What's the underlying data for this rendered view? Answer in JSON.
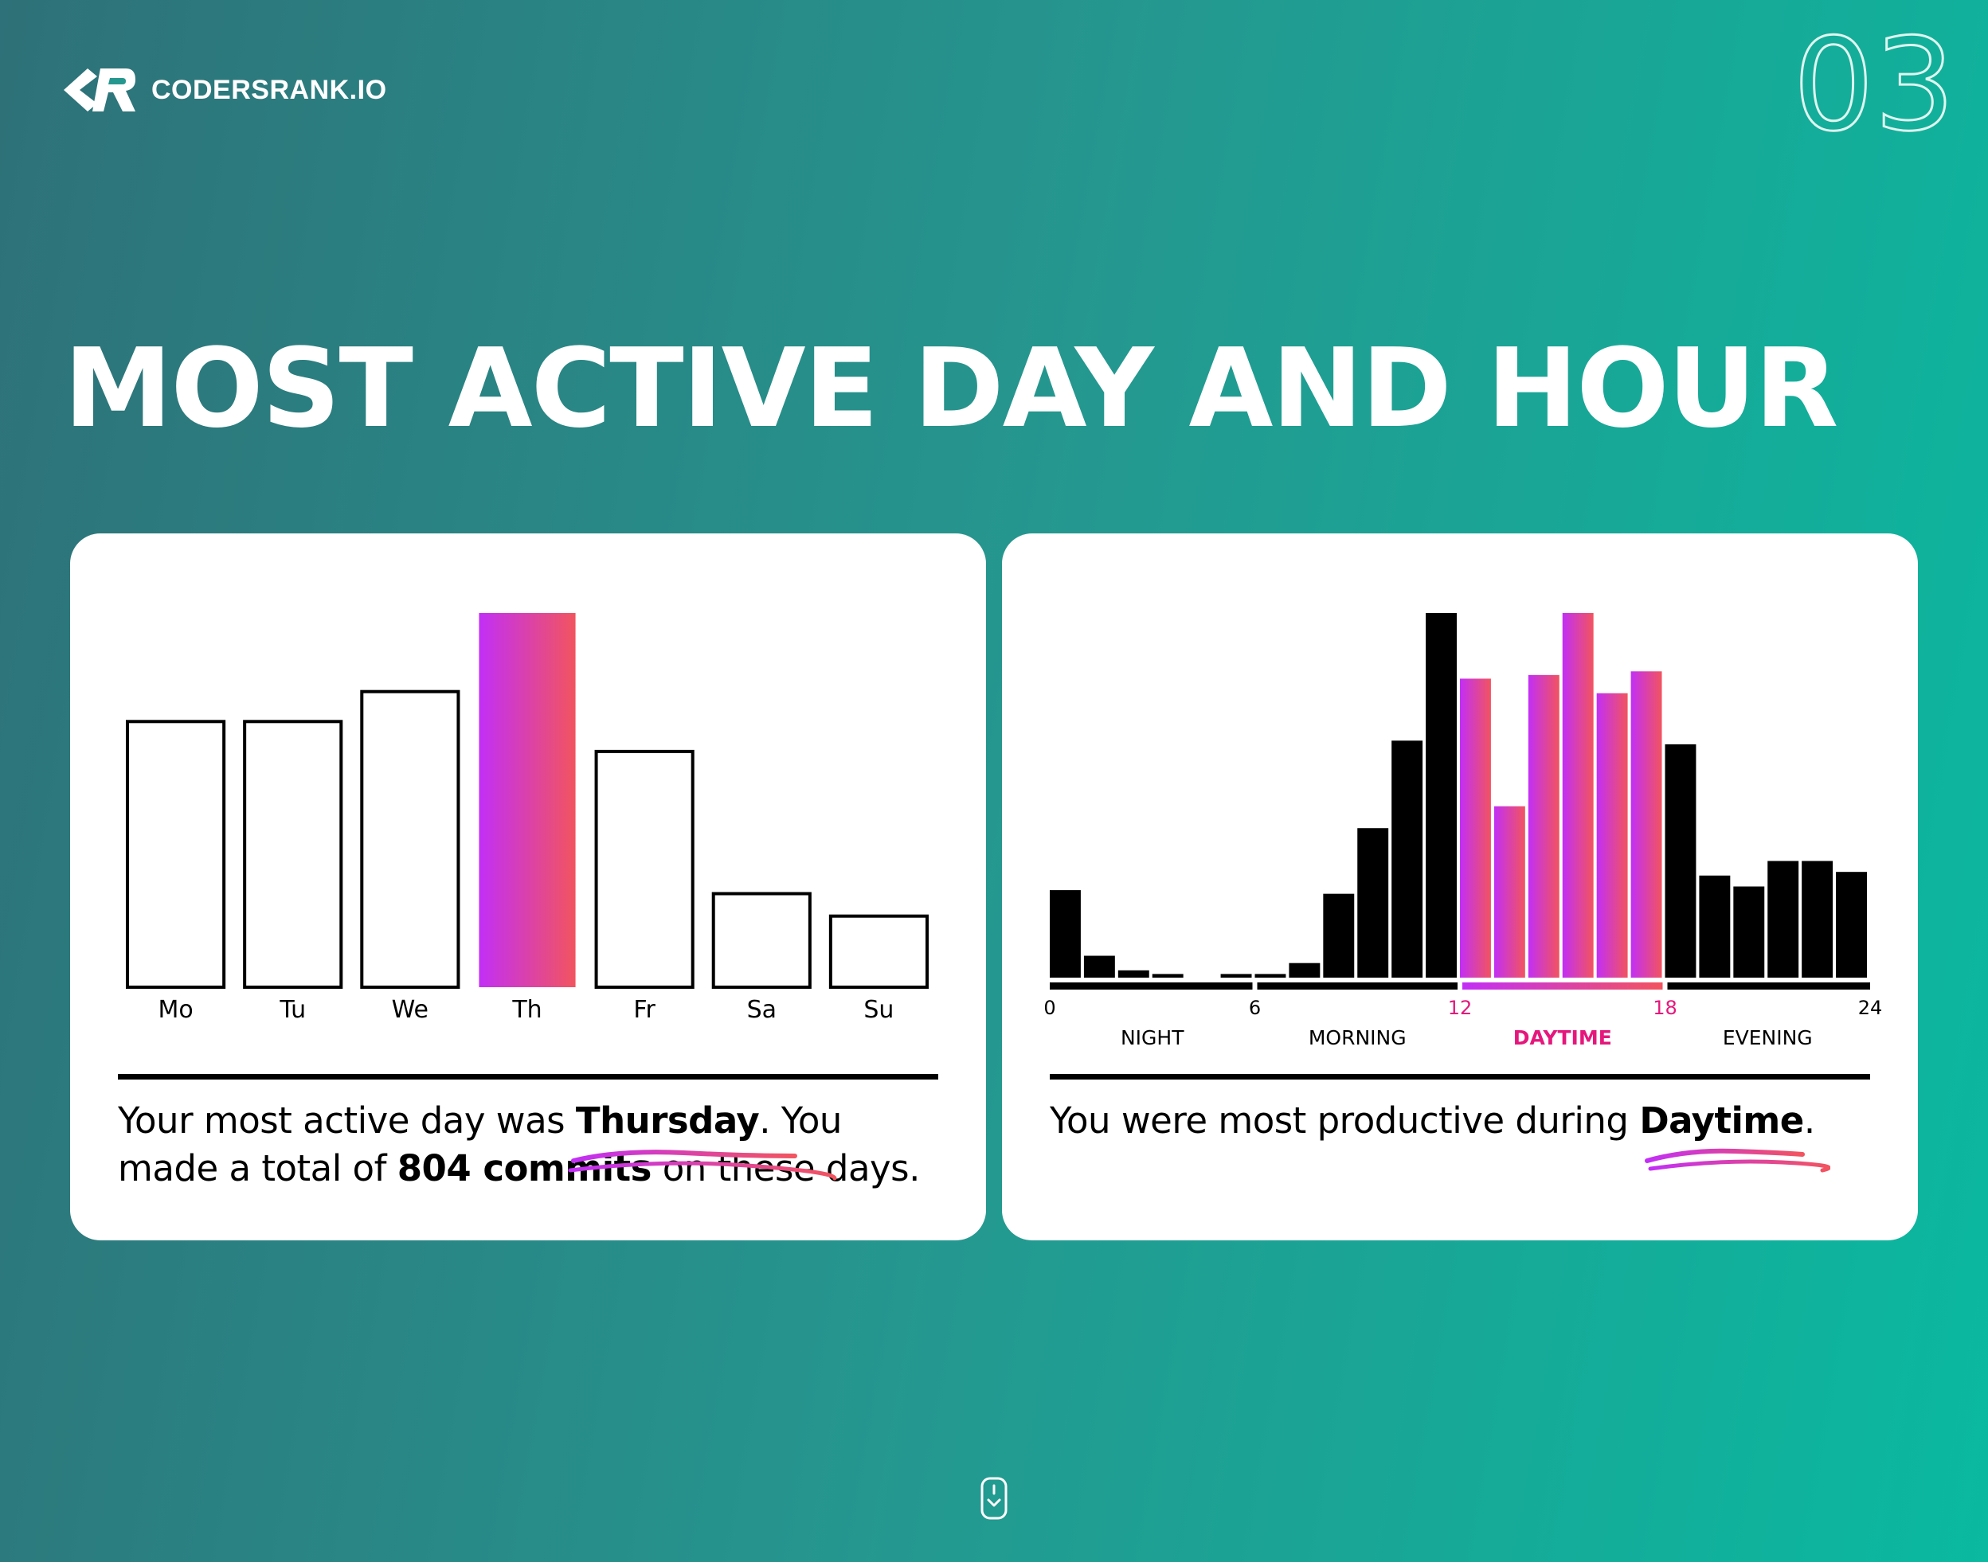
{
  "brand": {
    "name": "CODERSRANK.IO",
    "logo_icon": "codersrank-logo-icon"
  },
  "page_number": "03",
  "title": "MOST ACTIVE DAY AND HOUR",
  "colors": {
    "accent_start": "#c22ff6",
    "accent_end": "#f2545f",
    "highlight_text": "#e5177c",
    "bar": "#000000"
  },
  "day_card": {
    "caption_prefix": "Your most active day was ",
    "caption_day": "Thursday",
    "caption_mid": ". You made a total of ",
    "caption_commits": "804 commits",
    "caption_suffix": " on these days."
  },
  "hour_card": {
    "caption_prefix": "You were most productive during ",
    "caption_period": "Daytime",
    "caption_suffix": "."
  },
  "chart_data": [
    {
      "type": "bar",
      "categories": [
        "Mo",
        "Tu",
        "We",
        "Th",
        "Fr",
        "Sa",
        "Su"
      ],
      "values": [
        71,
        71,
        79,
        100,
        63,
        25,
        19
      ],
      "highlight": "Th",
      "ylim": [
        0,
        100
      ]
    },
    {
      "type": "bar",
      "x": [
        0,
        1,
        2,
        3,
        4,
        5,
        6,
        7,
        8,
        9,
        10,
        11,
        12,
        13,
        14,
        15,
        16,
        17,
        18,
        19,
        20,
        21,
        22,
        23
      ],
      "values": [
        24,
        6,
        2,
        1,
        0,
        1,
        1,
        4,
        23,
        41,
        65,
        100,
        82,
        47,
        83,
        100,
        78,
        84,
        64,
        28,
        25,
        32,
        32,
        29
      ],
      "ylim": [
        0,
        100
      ],
      "ticks": [
        "0",
        "6",
        "12",
        "18",
        "24"
      ],
      "periods": [
        "NIGHT",
        "MORNING",
        "DAYTIME",
        "EVENING"
      ],
      "highlight_period": "DAYTIME",
      "highlight_ticks": [
        "12",
        "18"
      ]
    }
  ]
}
